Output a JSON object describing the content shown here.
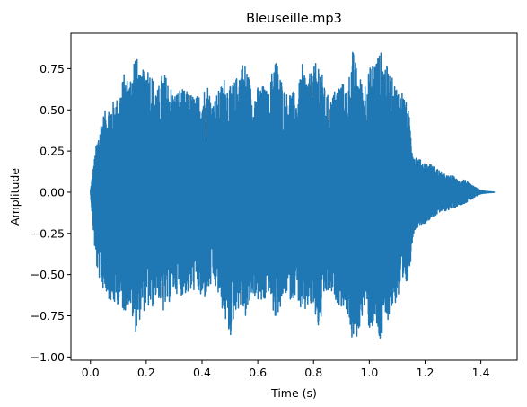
{
  "chart_data": {
    "type": "line",
    "title": "Bleuseille.mp3",
    "xlabel": "Time (s)",
    "ylabel": "Amplitude",
    "xlim": [
      -0.07,
      1.53
    ],
    "ylim": [
      -1.02,
      0.965
    ],
    "xticks": [
      0.0,
      0.2,
      0.4,
      0.6,
      0.8,
      1.0,
      1.2,
      1.4
    ],
    "xtick_labels": [
      "0.0",
      "0.2",
      "0.4",
      "0.6",
      "0.8",
      "1.0",
      "1.2",
      "1.4"
    ],
    "yticks": [
      -1.0,
      -0.75,
      -0.5,
      -0.25,
      0.0,
      0.25,
      0.5,
      0.75
    ],
    "ytick_labels": [
      "−1.00",
      "−0.75",
      "−0.50",
      "−0.25",
      "0.00",
      "0.25",
      "0.50",
      "0.75"
    ],
    "grid": false,
    "legend": "none",
    "series": [
      {
        "color": "#1f77b4",
        "envelope": {
          "t": [
            0.0,
            0.02,
            0.04,
            0.06,
            0.08,
            0.1,
            0.12,
            0.14,
            0.16,
            0.18,
            0.2,
            0.22,
            0.24,
            0.26,
            0.28,
            0.3,
            0.32,
            0.34,
            0.36,
            0.38,
            0.4,
            0.42,
            0.44,
            0.46,
            0.48,
            0.5,
            0.52,
            0.54,
            0.56,
            0.58,
            0.6,
            0.62,
            0.64,
            0.66,
            0.68,
            0.7,
            0.72,
            0.74,
            0.76,
            0.78,
            0.8,
            0.82,
            0.84,
            0.86,
            0.88,
            0.9,
            0.92,
            0.94,
            0.96,
            0.98,
            1.0,
            1.02,
            1.04,
            1.06,
            1.08,
            1.1,
            1.12,
            1.14,
            1.16,
            1.18,
            1.2,
            1.22,
            1.24,
            1.26,
            1.28,
            1.3,
            1.32,
            1.34,
            1.36,
            1.38,
            1.4,
            1.42,
            1.45
          ],
          "upper": [
            0.01,
            0.28,
            0.45,
            0.52,
            0.55,
            0.58,
            0.72,
            0.68,
            0.88,
            0.7,
            0.8,
            0.72,
            0.62,
            0.74,
            0.68,
            0.6,
            0.63,
            0.62,
            0.6,
            0.58,
            0.62,
            0.66,
            0.55,
            0.62,
            0.7,
            0.64,
            0.68,
            0.8,
            0.78,
            0.6,
            0.64,
            0.65,
            0.6,
            0.86,
            0.72,
            0.6,
            0.63,
            0.58,
            0.78,
            0.7,
            0.76,
            0.82,
            0.63,
            0.56,
            0.64,
            0.68,
            0.62,
            0.87,
            0.72,
            0.66,
            0.75,
            0.82,
            0.86,
            0.78,
            0.7,
            0.64,
            0.62,
            0.5,
            0.24,
            0.2,
            0.18,
            0.17,
            0.15,
            0.12,
            0.1,
            0.1,
            0.07,
            0.08,
            0.05,
            0.03,
            0.01,
            0.005,
            0.0
          ],
          "lower": [
            -0.01,
            -0.45,
            -0.58,
            -0.62,
            -0.7,
            -0.68,
            -0.73,
            -0.68,
            -0.86,
            -0.76,
            -0.7,
            -0.72,
            -0.62,
            -0.74,
            -0.68,
            -0.6,
            -0.63,
            -0.62,
            -0.62,
            -0.58,
            -0.68,
            -0.62,
            -0.55,
            -0.64,
            -0.76,
            -0.9,
            -0.72,
            -0.7,
            -0.78,
            -0.62,
            -0.66,
            -0.7,
            -0.6,
            -0.78,
            -0.72,
            -0.62,
            -0.66,
            -0.62,
            -0.78,
            -0.7,
            -0.72,
            -0.86,
            -0.63,
            -0.62,
            -0.66,
            -0.7,
            -0.72,
            -0.93,
            -0.88,
            -0.7,
            -0.84,
            -0.82,
            -0.94,
            -0.8,
            -0.72,
            -0.66,
            -0.62,
            -0.55,
            -0.24,
            -0.2,
            -0.19,
            -0.16,
            -0.14,
            -0.12,
            -0.11,
            -0.1,
            -0.08,
            -0.07,
            -0.05,
            -0.03,
            -0.01,
            -0.005,
            0.0
          ]
        }
      }
    ]
  }
}
